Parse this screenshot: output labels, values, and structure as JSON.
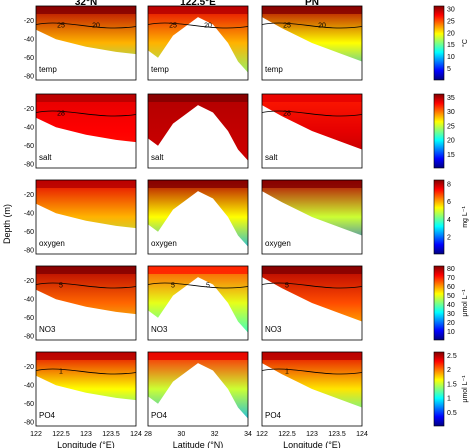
{
  "figure": {
    "columns": [
      "32°N",
      "122.5°E",
      "PN"
    ],
    "ylabel": "Depth (m)",
    "xlabels": [
      "Longitude (°E)",
      "Latitude (°N)",
      "Longitude (°E)"
    ]
  },
  "chart_data": [
    {
      "type": "heatmap",
      "variable": "temp",
      "colorbar_unit": "°C",
      "colorbar_ticks": [
        "5",
        "10",
        "15",
        "20",
        "25",
        "30"
      ],
      "panels": [
        {
          "column": "32°N",
          "contours": [
            "25",
            "20"
          ]
        },
        {
          "column": "122.5°E",
          "contours": [
            "25",
            "20"
          ]
        },
        {
          "column": "PN",
          "contours": [
            "25",
            "20"
          ]
        }
      ]
    },
    {
      "type": "heatmap",
      "variable": "salt",
      "colorbar_unit": "",
      "colorbar_ticks": [
        "15",
        "20",
        "25",
        "30",
        "35"
      ],
      "panels": [
        {
          "column": "32°N",
          "contours": [
            "28"
          ]
        },
        {
          "column": "122.5°E",
          "contours": []
        },
        {
          "column": "PN",
          "contours": [
            "28"
          ]
        }
      ]
    },
    {
      "type": "heatmap",
      "variable": "oxygen",
      "colorbar_unit": "mg L⁻¹",
      "colorbar_ticks": [
        "2",
        "4",
        "6",
        "8"
      ],
      "panels": [
        {
          "column": "32°N",
          "contours": []
        },
        {
          "column": "122.5°E",
          "contours": []
        },
        {
          "column": "PN",
          "contours": []
        }
      ]
    },
    {
      "type": "heatmap",
      "variable": "NO3",
      "colorbar_unit": "μmol L⁻¹",
      "colorbar_ticks": [
        "10",
        "20",
        "30",
        "40",
        "50",
        "60",
        "70",
        "80"
      ],
      "panels": [
        {
          "column": "32°N",
          "contours": [
            "5"
          ]
        },
        {
          "column": "122.5°E",
          "contours": [
            "5",
            "5"
          ]
        },
        {
          "column": "PN",
          "contours": [
            "5"
          ]
        }
      ]
    },
    {
      "type": "heatmap",
      "variable": "PO4",
      "colorbar_unit": "μmol L⁻¹",
      "colorbar_ticks": [
        "0.5",
        "1",
        "1.5",
        "2",
        "2.5"
      ],
      "panels": [
        {
          "column": "32°N",
          "contours": [
            "1"
          ]
        },
        {
          "column": "122.5°E",
          "contours": []
        },
        {
          "column": "PN",
          "contours": [
            "1"
          ]
        }
      ]
    }
  ],
  "axes": {
    "yticks": [
      "-20",
      "-40",
      "-60",
      "-80"
    ],
    "xticks_lon": [
      "122",
      "122.5",
      "123",
      "123.5",
      "124"
    ],
    "xticks_lat": [
      "28",
      "30",
      "32",
      "34"
    ]
  }
}
